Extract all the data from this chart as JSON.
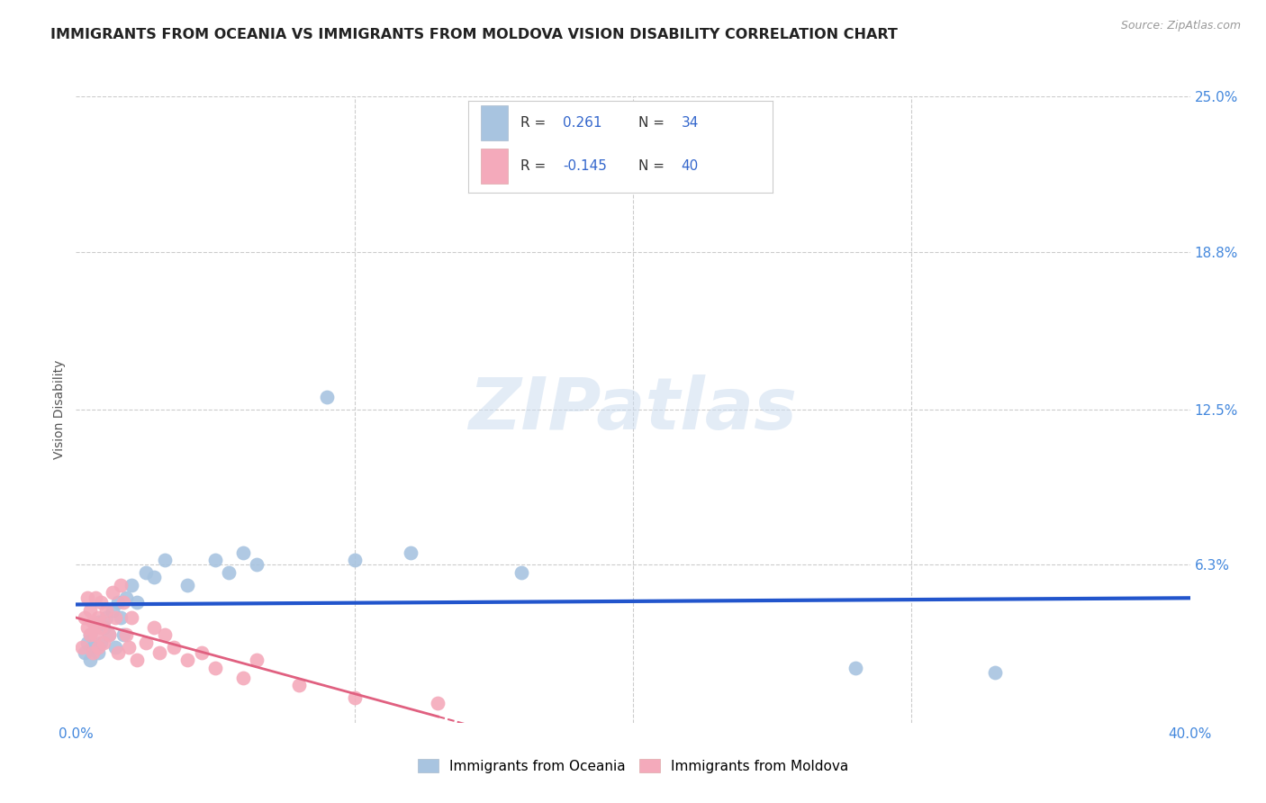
{
  "title": "IMMIGRANTS FROM OCEANIA VS IMMIGRANTS FROM MOLDOVA VISION DISABILITY CORRELATION CHART",
  "source": "Source: ZipAtlas.com",
  "ylabel": "Vision Disability",
  "xlim": [
    0.0,
    0.4
  ],
  "ylim": [
    0.0,
    0.25
  ],
  "xticks": [
    0.0,
    0.1,
    0.2,
    0.3,
    0.4
  ],
  "xticklabels": [
    "0.0%",
    "",
    "",
    "",
    "40.0%"
  ],
  "ytick_right_labels": [
    "25.0%",
    "18.8%",
    "12.5%",
    "6.3%",
    ""
  ],
  "ytick_right_values": [
    0.25,
    0.188,
    0.125,
    0.063,
    0.0
  ],
  "grid_color": "#cccccc",
  "background_color": "#ffffff",
  "watermark_text": "ZIPatlas",
  "oceania_color": "#a8c4e0",
  "oceania_line_color": "#2255cc",
  "moldova_color": "#f4aabb",
  "moldova_line_color": "#e06080",
  "oceania_R": "0.261",
  "oceania_N": "34",
  "moldova_R": "-0.145",
  "moldova_N": "40",
  "oceania_x": [
    0.003,
    0.004,
    0.005,
    0.005,
    0.006,
    0.007,
    0.008,
    0.008,
    0.009,
    0.01,
    0.011,
    0.012,
    0.013,
    0.014,
    0.015,
    0.016,
    0.017,
    0.018,
    0.02,
    0.022,
    0.025,
    0.028,
    0.032,
    0.04,
    0.05,
    0.055,
    0.06,
    0.065,
    0.09,
    0.1,
    0.12,
    0.16,
    0.28,
    0.33
  ],
  "oceania_y": [
    0.028,
    0.032,
    0.025,
    0.035,
    0.03,
    0.038,
    0.028,
    0.04,
    0.032,
    0.038,
    0.042,
    0.035,
    0.045,
    0.03,
    0.048,
    0.042,
    0.035,
    0.05,
    0.055,
    0.048,
    0.06,
    0.058,
    0.065,
    0.055,
    0.065,
    0.06,
    0.068,
    0.063,
    0.13,
    0.065,
    0.068,
    0.06,
    0.022,
    0.02
  ],
  "moldova_x": [
    0.002,
    0.003,
    0.004,
    0.004,
    0.005,
    0.005,
    0.006,
    0.006,
    0.007,
    0.007,
    0.008,
    0.008,
    0.009,
    0.009,
    0.01,
    0.01,
    0.011,
    0.012,
    0.013,
    0.014,
    0.015,
    0.016,
    0.017,
    0.018,
    0.019,
    0.02,
    0.022,
    0.025,
    0.028,
    0.03,
    0.032,
    0.035,
    0.04,
    0.045,
    0.05,
    0.06,
    0.065,
    0.08,
    0.1,
    0.13
  ],
  "moldova_y": [
    0.03,
    0.042,
    0.038,
    0.05,
    0.035,
    0.045,
    0.028,
    0.04,
    0.035,
    0.05,
    0.03,
    0.042,
    0.038,
    0.048,
    0.032,
    0.04,
    0.045,
    0.035,
    0.052,
    0.042,
    0.028,
    0.055,
    0.048,
    0.035,
    0.03,
    0.042,
    0.025,
    0.032,
    0.038,
    0.028,
    0.035,
    0.03,
    0.025,
    0.028,
    0.022,
    0.018,
    0.025,
    0.015,
    0.01,
    0.008
  ],
  "title_fontsize": 11.5,
  "source_fontsize": 9,
  "tick_fontsize": 11,
  "ylabel_fontsize": 10,
  "legend_fontsize": 11
}
